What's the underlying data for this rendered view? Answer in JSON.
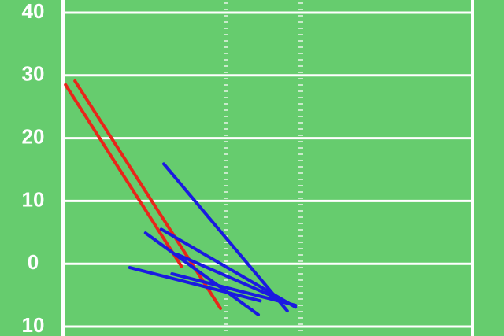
{
  "chart_data": {
    "type": "segments",
    "ylim": [
      -11.5,
      42
    ],
    "yticks": [
      40,
      30,
      20,
      10,
      0,
      {
        "value": -10,
        "label": "10"
      }
    ],
    "xlim": [
      0,
      65
    ],
    "grid": true,
    "series": [
      {
        "color": "#e8261a",
        "x": [
          0.4,
          18.8
        ],
        "values": [
          28.5,
          -0.4
        ]
      },
      {
        "color": "#e8261a",
        "x": [
          1.9,
          25
        ],
        "values": [
          29.1,
          -7.1
        ]
      },
      {
        "color": "#1a1ae0",
        "x": [
          16,
          35.6
        ],
        "values": [
          15.9,
          -7.5
        ]
      },
      {
        "color": "#1a1ae0",
        "x": [
          13.1,
          31
        ],
        "values": [
          4.9,
          -8.1
        ]
      },
      {
        "color": "#1a1ae0",
        "x": [
          15.6,
          36.9
        ],
        "values": [
          5.5,
          -6.9
        ]
      },
      {
        "color": "#1a1ae0",
        "x": [
          18.1,
          33.8
        ],
        "values": [
          1.5,
          -5.4
        ]
      },
      {
        "color": "#1a1ae0",
        "x": [
          10.6,
          31.3
        ],
        "values": [
          -0.6,
          -5.9
        ]
      },
      {
        "color": "#1a1ae0",
        "x": [
          17.3,
          36.9
        ],
        "values": [
          -1.6,
          -6.6
        ]
      }
    ]
  }
}
